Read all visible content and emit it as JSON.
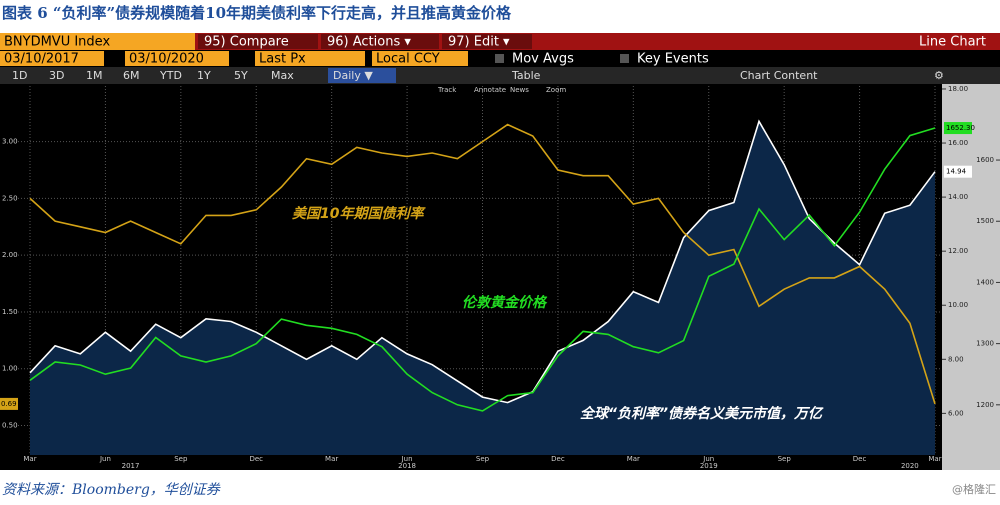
{
  "caption": "图表 6 “负利率”债券规模随着10年期美债利率下行走高，并且推高黄金价格",
  "source": "资料来源：Bloomberg，华创证券",
  "watermark": "@格隆汇",
  "toolbar": {
    "ticker": "BNYDMVU Index",
    "compare": "95) Compare",
    "actions": "96) Actions ▾",
    "edit": "97) Edit ▾",
    "chart_kind": "Line Chart",
    "start_date": "03/10/2017",
    "end_date": "03/10/2020",
    "field": "Last Px",
    "currency": "Local CCY",
    "mov_avgs": "Mov Avgs",
    "key_events": "Key Events",
    "ranges": [
      "1D",
      "3D",
      "1M",
      "6M",
      "YTD",
      "1Y",
      "5Y",
      "Max"
    ],
    "frequency": "Daily ▼",
    "table": "Table",
    "chart_content": "Chart Content",
    "tools": [
      "Track",
      "Annotate",
      "News",
      "Zoom"
    ]
  },
  "chart_data": {
    "type": "line",
    "x": [
      "2017-03",
      "2017-04",
      "2017-05",
      "2017-06",
      "2017-07",
      "2017-08",
      "2017-09",
      "2017-10",
      "2017-11",
      "2017-12",
      "2018-01",
      "2018-02",
      "2018-03",
      "2018-04",
      "2018-05",
      "2018-06",
      "2018-07",
      "2018-08",
      "2018-09",
      "2018-10",
      "2018-11",
      "2018-12",
      "2019-01",
      "2019-02",
      "2019-03",
      "2019-04",
      "2019-05",
      "2019-06",
      "2019-07",
      "2019-08",
      "2019-09",
      "2019-10",
      "2019-11",
      "2019-12",
      "2020-01",
      "2020-02",
      "2020-03"
    ],
    "series": [
      {
        "name": "全球“负利率”债券名义美元市值，万亿",
        "color": "#ffffff",
        "fill": "#0c2748",
        "axis": "y2",
        "last_label": "14.94",
        "values": [
          7.5,
          8.5,
          8.2,
          9.0,
          8.3,
          9.3,
          8.8,
          9.5,
          9.4,
          9.0,
          8.5,
          8.0,
          8.5,
          8.0,
          8.8,
          8.2,
          7.8,
          7.2,
          6.6,
          6.4,
          6.8,
          8.3,
          8.7,
          9.4,
          10.5,
          10.1,
          12.5,
          13.5,
          13.8,
          16.8,
          15.2,
          13.2,
          12.3,
          11.5,
          13.4,
          13.7,
          14.94
        ]
      },
      {
        "name": "美国10年期国债利率",
        "color": "#d4a317",
        "axis": "y",
        "last_label": "0.69",
        "values": [
          2.5,
          2.3,
          2.25,
          2.2,
          2.3,
          2.2,
          2.1,
          2.35,
          2.35,
          2.4,
          2.6,
          2.85,
          2.8,
          2.95,
          2.9,
          2.87,
          2.9,
          2.85,
          3.0,
          3.15,
          3.05,
          2.75,
          2.7,
          2.7,
          2.45,
          2.5,
          2.2,
          2.0,
          2.05,
          1.55,
          1.7,
          1.8,
          1.8,
          1.9,
          1.7,
          1.4,
          0.69
        ]
      },
      {
        "name": "伦敦黄金价格",
        "color": "#22dd22",
        "axis": "y3",
        "last_label": "1652.30",
        "values": [
          1240,
          1270,
          1265,
          1250,
          1260,
          1310,
          1280,
          1270,
          1280,
          1300,
          1340,
          1330,
          1325,
          1315,
          1295,
          1250,
          1220,
          1200,
          1190,
          1215,
          1220,
          1280,
          1320,
          1315,
          1295,
          1285,
          1305,
          1410,
          1430,
          1520,
          1470,
          1510,
          1460,
          1515,
          1585,
          1640,
          1652.3
        ]
      }
    ],
    "ylim": [
      0.24,
      3.49
    ],
    "yticks": [
      {
        "value": 0.5,
        "label": "0.50"
      },
      {
        "value": 1,
        "label": "1.00"
      },
      {
        "value": 1.5,
        "label": "1.50"
      },
      {
        "value": 2,
        "label": "2.00"
      },
      {
        "value": 2.5,
        "label": "2.50"
      },
      {
        "value": 3,
        "label": "3.00"
      }
    ],
    "y2lim": [
      4.46,
      18.11
    ],
    "y2ticks": [
      {
        "value": 6,
        "label": "6.00"
      },
      {
        "value": 8,
        "label": "8.00"
      },
      {
        "value": 10,
        "label": "10.00"
      },
      {
        "value": 12,
        "label": "12.00"
      },
      {
        "value": 14,
        "label": "14.00"
      },
      {
        "value": 16,
        "label": "16.00"
      },
      {
        "value": 18,
        "label": "18.00"
      }
    ],
    "y3lim": [
      1118,
      1721
    ],
    "y3ticks": [
      1200,
      1300,
      1400,
      1500,
      1600
    ],
    "xticks": [
      {
        "value": "2017-03",
        "label": "Mar"
      },
      {
        "value": "2017-06",
        "label": "Jun"
      },
      {
        "value": "2017-09",
        "label": "Sep"
      },
      {
        "value": "2017-12",
        "label": "Dec"
      },
      {
        "value": "2018-03",
        "label": "Mar"
      },
      {
        "value": "2018-06",
        "label": "Jun"
      },
      {
        "value": "2018-09",
        "label": "Sep"
      },
      {
        "value": "2018-12",
        "label": "Dec"
      },
      {
        "value": "2019-03",
        "label": "Mar"
      },
      {
        "value": "2019-06",
        "label": "Jun"
      },
      {
        "value": "2019-09",
        "label": "Sep"
      },
      {
        "value": "2019-12",
        "label": "Dec"
      },
      {
        "value": "2020-03",
        "label": "Mar"
      }
    ],
    "year_labels": [
      {
        "value": "2017-07",
        "label": "2017"
      },
      {
        "value": "2018-06",
        "label": "2018"
      },
      {
        "value": "2019-06",
        "label": "2019"
      },
      {
        "value": "2020-02",
        "label": "2020"
      }
    ],
    "grid": true
  }
}
